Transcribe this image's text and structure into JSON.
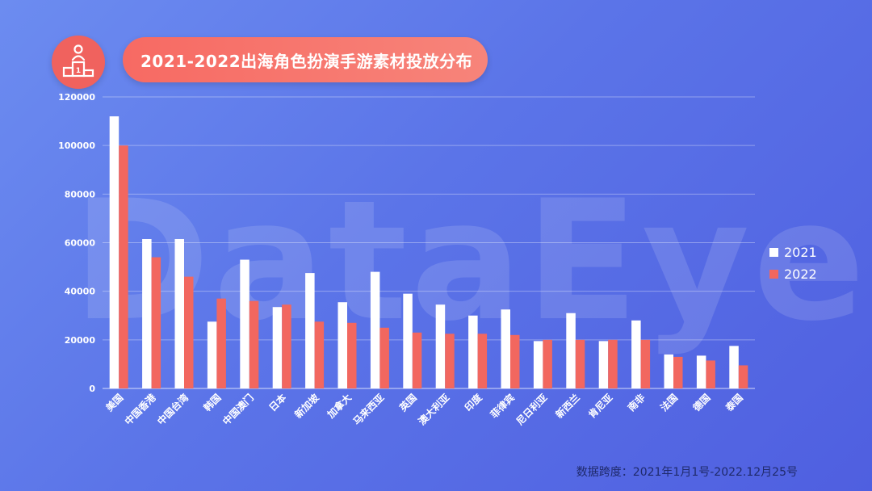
{
  "watermark": "DataEye",
  "footer": "数据跨度：2021年1月1号-2022.12月25号",
  "colors": {
    "series_2021": "#ffffff",
    "series_2022": "#f2675f",
    "grid": "rgba(255,255,255,0.35)",
    "axis_text": "#ffffff"
  },
  "chart_data": {
    "type": "bar",
    "title": "2021-2022出海角色扮演手游素材投放分布",
    "categories": [
      "美国",
      "中国香港",
      "中国台湾",
      "韩国",
      "中国澳门",
      "日本",
      "新加坡",
      "加拿大",
      "马来西亚",
      "英国",
      "澳大利亚",
      "印度",
      "菲律宾",
      "尼日利亚",
      "新西兰",
      "肯尼亚",
      "南非",
      "法国",
      "德国",
      "泰国"
    ],
    "series": [
      {
        "name": "2021",
        "values": [
          112000,
          61500,
          61500,
          27500,
          53000,
          33500,
          47500,
          35500,
          48000,
          39000,
          34500,
          30000,
          32500,
          19500,
          31000,
          19500,
          28000,
          14000,
          13500,
          17500
        ]
      },
      {
        "name": "2022",
        "values": [
          100000,
          54000,
          46000,
          37000,
          36000,
          34500,
          27500,
          27000,
          25000,
          23000,
          22500,
          22500,
          22000,
          20000,
          20000,
          20000,
          20000,
          13000,
          11500,
          9500
        ]
      }
    ],
    "yticks": [
      0,
      20000,
      40000,
      60000,
      80000,
      100000,
      120000
    ],
    "ylim": [
      0,
      120000
    ],
    "grid": true,
    "legend": "right"
  }
}
